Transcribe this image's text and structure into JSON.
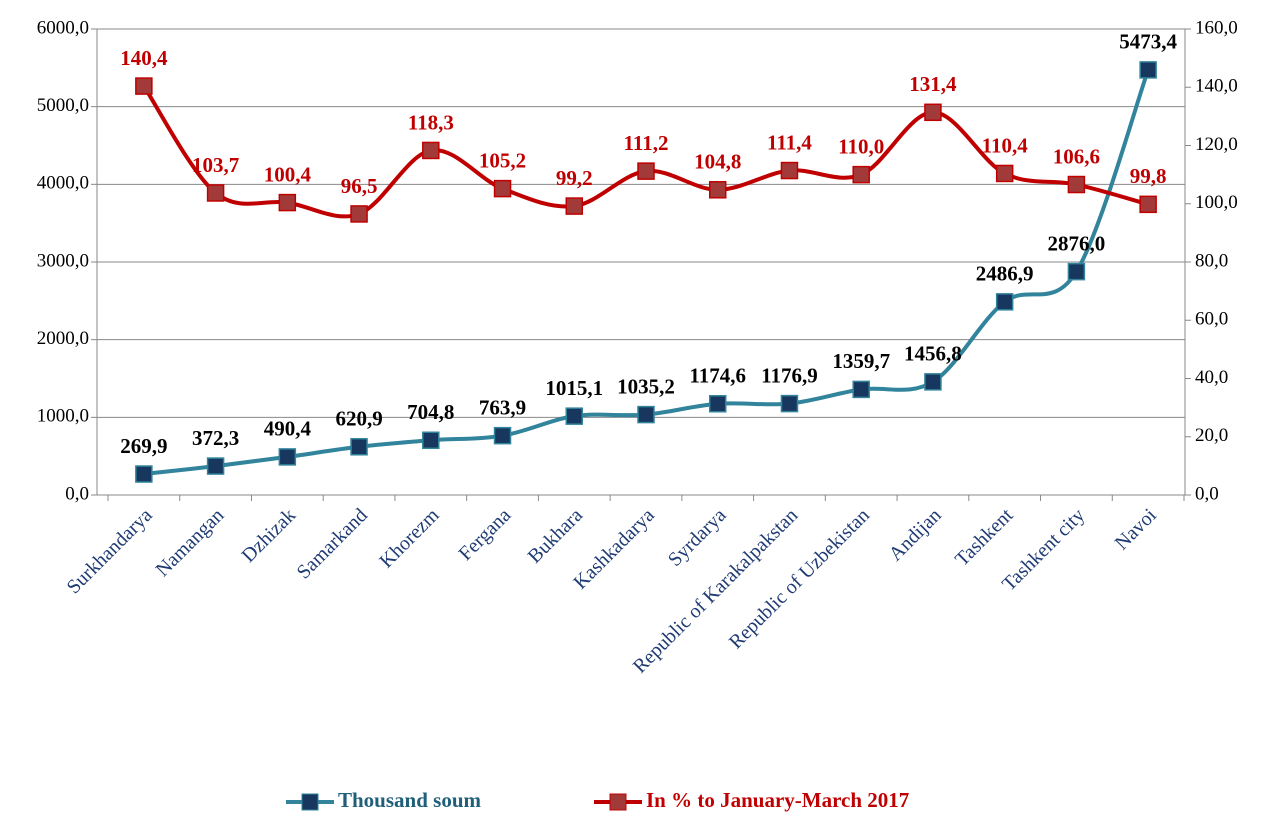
{
  "chart_data": {
    "type": "line",
    "categories": [
      "Surkhandarya",
      "Namangan",
      "Dzhizak",
      "Samarkand",
      "Khorezm",
      "Fergana",
      "Bukhara",
      "Kashkadarya",
      "Syrdarya",
      "Republic of Karakalpakstan",
      "Republic of Uzbekistan",
      "Andijan",
      "Tashkent",
      "Tashkent city",
      "Navoi"
    ],
    "series": [
      {
        "name": "Thousand soum",
        "color": "#31849b",
        "marker_color": "#17375e",
        "values": [
          269.9,
          372.3,
          490.4,
          620.9,
          704.8,
          763.9,
          1015.1,
          1035.2,
          1174.6,
          1176.9,
          1359.7,
          1456.8,
          2486.9,
          2876.0,
          5473.4
        ],
        "value_labels": [
          "269,9",
          "372,3",
          "490,4",
          "620,9",
          "704,8",
          "763,9",
          "1015,1",
          "1035,2",
          "1174,6",
          "1176,9",
          "1359,7",
          "1456,8",
          "2486,9",
          "2876,0",
          "5473,4"
        ]
      },
      {
        "name": "In % to January-March 2017",
        "color": "#c00000",
        "marker_color": "#a33a3a",
        "axis": "y2",
        "values": [
          140.4,
          103.7,
          100.4,
          96.5,
          118.3,
          105.2,
          99.2,
          111.2,
          104.8,
          111.4,
          110.0,
          131.4,
          110.4,
          106.6,
          99.8
        ],
        "value_labels": [
          "140,4",
          "103,7",
          "100,4",
          "96,5",
          "118,3",
          "105,2",
          "99,2",
          "111,2",
          "104,8",
          "111,4",
          "110,0",
          "131,4",
          "110,4",
          "106,6",
          "99,8"
        ]
      }
    ],
    "ylim": [
      0,
      6000
    ],
    "yticks": [
      {
        "value": 0,
        "label": "0,0"
      },
      {
        "value": 1000,
        "label": "1000,0"
      },
      {
        "value": 2000,
        "label": "2000,0"
      },
      {
        "value": 3000,
        "label": "3000,0"
      },
      {
        "value": 4000,
        "label": "4000,0"
      },
      {
        "value": 5000,
        "label": "5000,0"
      },
      {
        "value": 6000,
        "label": "6000,0"
      }
    ],
    "y2lim": [
      0,
      160
    ],
    "y2ticks": [
      {
        "value": 0,
        "label": "0,0"
      },
      {
        "value": 20,
        "label": "20,0"
      },
      {
        "value": 40,
        "label": "40,0"
      },
      {
        "value": 60,
        "label": "60,0"
      },
      {
        "value": 80,
        "label": "80,0"
      },
      {
        "value": 100,
        "label": "100,0"
      },
      {
        "value": 120,
        "label": "120,0"
      },
      {
        "value": 140,
        "label": "140,0"
      },
      {
        "value": 160,
        "label": "160,0"
      }
    ],
    "grid": true,
    "smooth": true,
    "legend": "bottom"
  }
}
